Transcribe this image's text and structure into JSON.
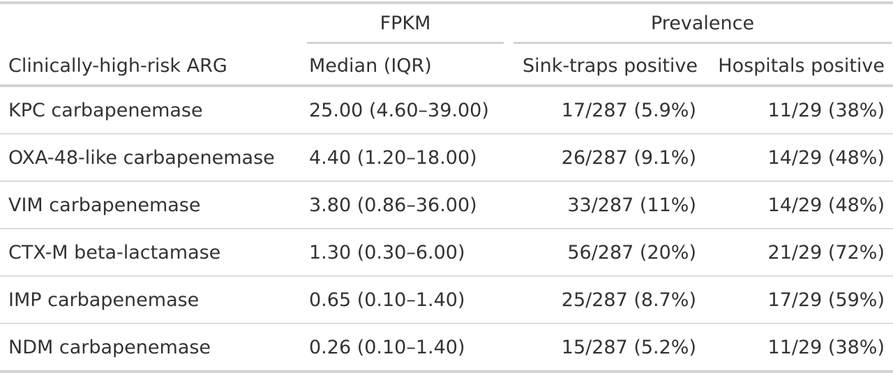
{
  "spanners": {
    "fpkm": "FPKM",
    "prevalence": "Prevalence"
  },
  "columns": {
    "arg": "Clinically-high-risk ARG",
    "median": "Median (IQR)",
    "sink": "Sink-traps positive",
    "hosp": "Hospitals positive"
  },
  "rows": [
    {
      "arg": "KPC carbapenemase",
      "median": "25.00 (4.60–39.00)",
      "sink": "17/287 (5.9%)",
      "hosp": "11/29 (38%)"
    },
    {
      "arg": "OXA-48-like carbapenemase",
      "median": "4.40 (1.20–18.00)",
      "sink": "26/287 (9.1%)",
      "hosp": "14/29 (48%)"
    },
    {
      "arg": "VIM carbapenemase",
      "median": "3.80 (0.86–36.00)",
      "sink": "33/287 (11%)",
      "hosp": "14/29 (48%)"
    },
    {
      "arg": "CTX-M beta-lactamase",
      "median": "1.30 (0.30–6.00)",
      "sink": "56/287 (20%)",
      "hosp": "21/29 (72%)"
    },
    {
      "arg": "IMP carbapenemase",
      "median": "0.65 (0.10–1.40)",
      "sink": "25/287 (8.7%)",
      "hosp": "17/29 (59%)"
    },
    {
      "arg": "NDM carbapenemase",
      "median": "0.26 (0.10–1.40)",
      "sink": "15/287 (5.2%)",
      "hosp": "11/29 (38%)"
    }
  ]
}
